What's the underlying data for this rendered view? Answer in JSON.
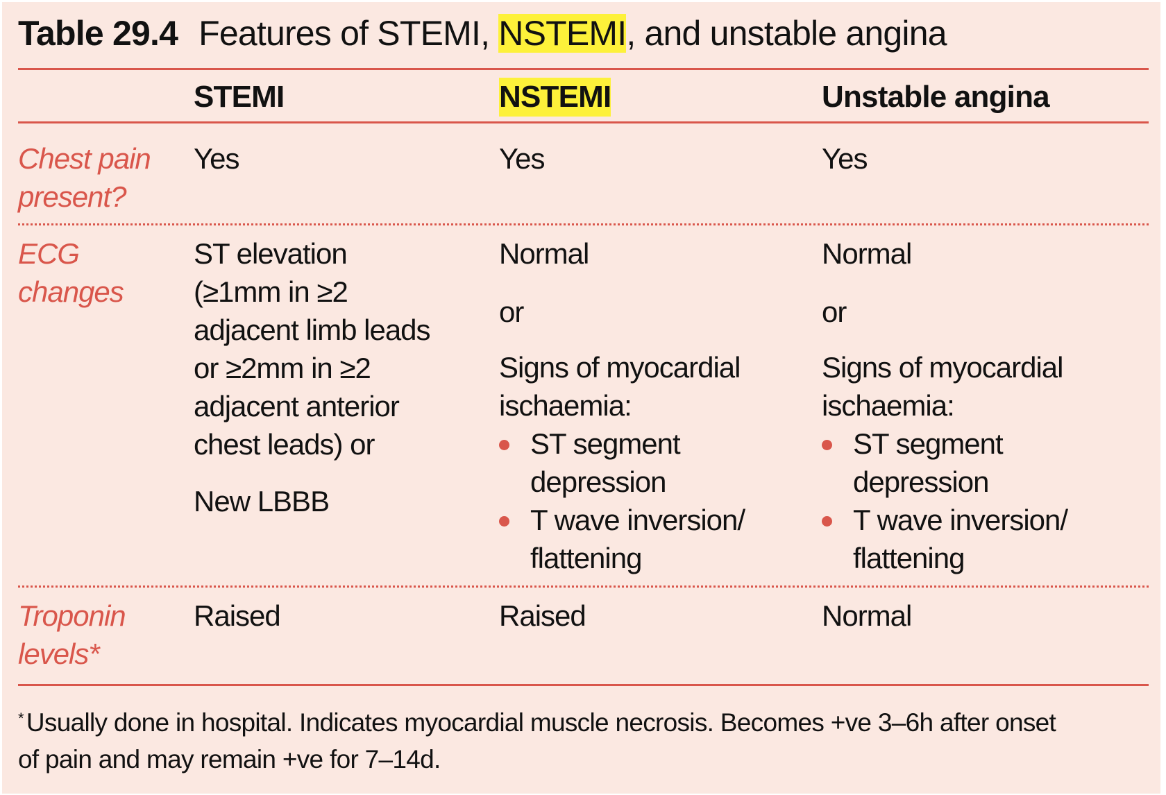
{
  "title": {
    "number": "Table 29.4",
    "prefix": "Features of STEMI, ",
    "highlight": "NSTEMI",
    "suffix": ", and unstable angina"
  },
  "columns": [
    "STEMI",
    "NSTEMI",
    "Unstable angina"
  ],
  "colors": {
    "accent": "#d9564b",
    "background": "#fbe8e1",
    "highlight": "#fdf13a"
  },
  "rows": [
    {
      "label": [
        "Chest pain",
        "present?"
      ],
      "stemi": "Yes",
      "nstemi": "Yes",
      "ua": "Yes"
    },
    {
      "label": [
        "ECG",
        "changes"
      ],
      "stemi": {
        "lines": [
          "ST elevation",
          "(≥1mm in ≥2",
          "adjacent limb leads",
          "or ≥2mm in ≥2",
          "adjacent anterior",
          "chest leads) or"
        ],
        "extra": "New LBBB"
      },
      "nstemi": {
        "first": "Normal",
        "or": "or",
        "signs": [
          "Signs of myocardial",
          "ischaemia:"
        ],
        "bullets": [
          [
            "ST segment",
            "depression"
          ],
          [
            "T wave inversion/",
            "flattening"
          ]
        ]
      },
      "ua": {
        "first": "Normal",
        "or": "or",
        "signs": [
          "Signs of myocardial",
          "ischaemia:"
        ],
        "bullets": [
          [
            "ST segment",
            "depression"
          ],
          [
            "T wave inversion/",
            "flattening"
          ]
        ]
      }
    },
    {
      "label": [
        "Troponin",
        "levels*"
      ],
      "stemi": "Raised",
      "nstemi": "Raised",
      "ua": "Normal"
    }
  ],
  "footnote": {
    "marker": "*",
    "lines": [
      "Usually done in hospital. Indicates myocardial muscle necrosis. Becomes +ve 3–6h after onset",
      "of pain and may remain +ve for 7–14d."
    ]
  }
}
